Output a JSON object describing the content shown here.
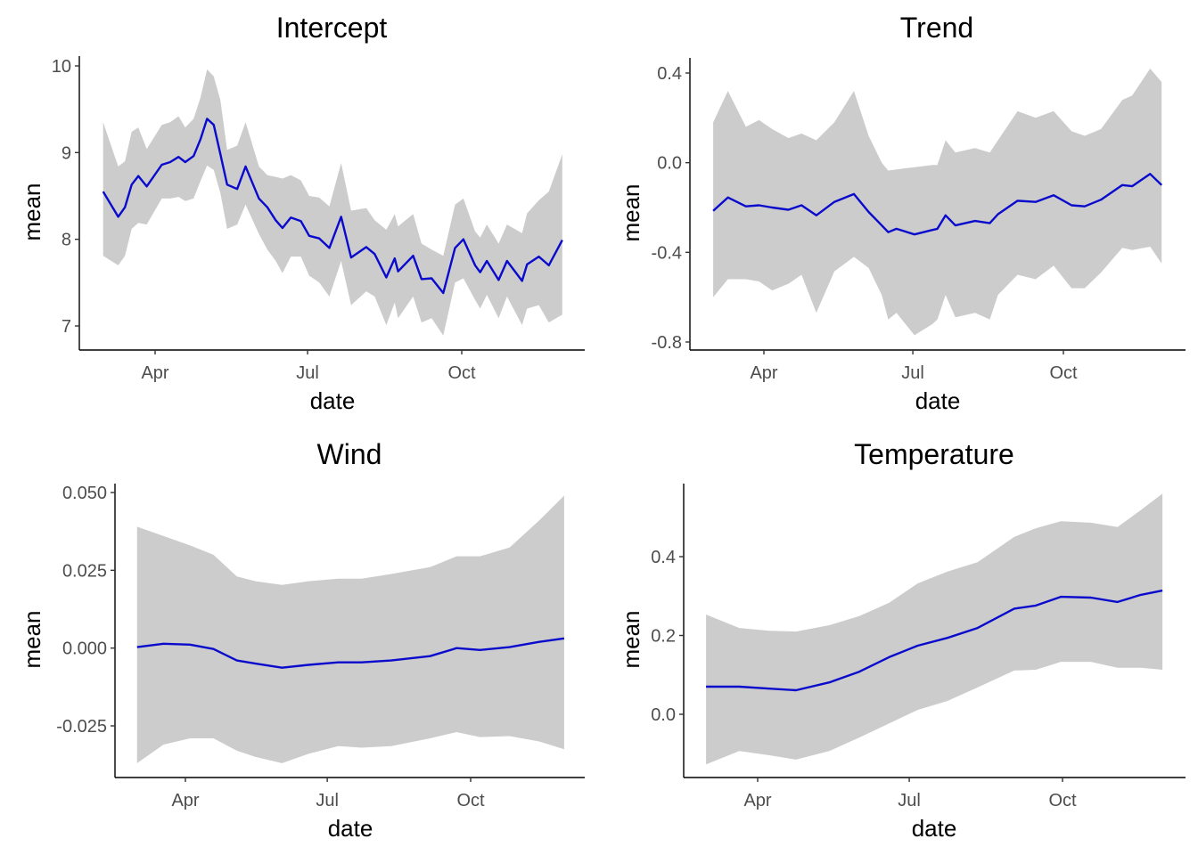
{
  "chart_data": [
    {
      "type": "line",
      "title": "Intercept",
      "xlabel": "date",
      "ylabel": "mean",
      "x_range": [
        "03-01",
        "11-30"
      ],
      "ylim": [
        6.9,
        10.1
      ],
      "grid": false,
      "colors": {
        "line": "#0a0acd",
        "ribbon": "#cccccc"
      },
      "yticks": [
        {
          "value": 7,
          "label": "7"
        },
        {
          "value": 8,
          "label": "8"
        },
        {
          "value": 9,
          "label": "9"
        },
        {
          "value": 10,
          "label": "10"
        }
      ],
      "xticks": [
        {
          "date": "04-01",
          "label": "Apr"
        },
        {
          "date": "07-01",
          "label": "Jul"
        },
        {
          "date": "10-01",
          "label": "Oct"
        }
      ],
      "series": {
        "date": [
          "03-01",
          "03-10",
          "03-14",
          "03-18",
          "03-22",
          "03-27",
          "04-05",
          "04-10",
          "04-15",
          "04-19",
          "04-24",
          "04-28",
          "05-02",
          "05-06",
          "05-10",
          "05-14",
          "05-20",
          "05-25",
          "06-02",
          "06-07",
          "06-12",
          "06-16",
          "06-21",
          "06-27",
          "07-02",
          "07-08",
          "07-14",
          "07-21",
          "07-27",
          "08-05",
          "08-10",
          "08-17",
          "08-22",
          "08-24",
          "09-02",
          "09-07",
          "09-13",
          "09-20",
          "09-27",
          "10-02",
          "10-09",
          "10-12",
          "10-16",
          "10-23",
          "10-28",
          "11-06",
          "11-09",
          "11-16",
          "11-22",
          "11-30"
        ],
        "lower": [
          7.81,
          7.7,
          7.81,
          8.12,
          8.19,
          8.17,
          8.47,
          8.47,
          8.49,
          8.44,
          8.47,
          8.67,
          8.85,
          8.8,
          8.53,
          8.12,
          8.17,
          8.4,
          8.06,
          7.88,
          7.75,
          7.61,
          7.8,
          7.8,
          7.58,
          7.5,
          7.34,
          7.75,
          7.24,
          7.4,
          7.34,
          7.01,
          7.27,
          7.09,
          7.34,
          7.04,
          7.09,
          6.89,
          7.5,
          7.55,
          7.3,
          7.2,
          7.36,
          7.09,
          7.34,
          7.01,
          7.2,
          7.24,
          7.04,
          7.13
        ],
        "mean": [
          8.55,
          8.26,
          8.37,
          8.63,
          8.73,
          8.61,
          8.86,
          8.89,
          8.95,
          8.89,
          8.96,
          9.15,
          9.39,
          9.32,
          8.98,
          8.63,
          8.58,
          8.84,
          8.47,
          8.37,
          8.22,
          8.13,
          8.25,
          8.21,
          8.04,
          8.01,
          7.9,
          8.26,
          7.79,
          7.91,
          7.83,
          7.56,
          7.78,
          7.63,
          7.81,
          7.54,
          7.55,
          7.38,
          7.9,
          8.0,
          7.7,
          7.62,
          7.75,
          7.53,
          7.75,
          7.52,
          7.71,
          7.8,
          7.7,
          7.99
        ],
        "upper": [
          9.35,
          8.84,
          8.9,
          9.24,
          9.29,
          9.04,
          9.32,
          9.35,
          9.42,
          9.29,
          9.39,
          9.63,
          9.96,
          9.88,
          9.6,
          9.03,
          9.08,
          9.35,
          8.84,
          8.74,
          8.72,
          8.7,
          8.74,
          8.68,
          8.5,
          8.48,
          8.38,
          8.88,
          8.33,
          8.36,
          8.22,
          8.11,
          8.29,
          8.15,
          8.29,
          7.95,
          7.88,
          7.81,
          8.4,
          8.47,
          8.09,
          8.02,
          8.17,
          7.95,
          8.17,
          8.07,
          8.3,
          8.45,
          8.55,
          8.98
        ]
      }
    },
    {
      "type": "line",
      "title": "Trend",
      "xlabel": "date",
      "ylabel": "mean",
      "x_range": [
        "03-01",
        "11-30"
      ],
      "ylim": [
        -0.85,
        0.45
      ],
      "grid": false,
      "colors": {
        "line": "#0a0acd",
        "ribbon": "#cccccc"
      },
      "yticks": [
        {
          "value": -0.8,
          "label": "-0.8"
        },
        {
          "value": -0.4,
          "label": "-0.4"
        },
        {
          "value": 0.0,
          "label": "0.0"
        },
        {
          "value": 0.4,
          "label": "0.4"
        }
      ],
      "xticks": [
        {
          "date": "04-01",
          "label": "Apr"
        },
        {
          "date": "07-01",
          "label": "Jul"
        },
        {
          "date": "10-01",
          "label": "Oct"
        }
      ],
      "series": {
        "date": [
          "03-01",
          "03-10",
          "03-21",
          "03-29",
          "04-06",
          "04-16",
          "04-24",
          "05-03",
          "05-14",
          "05-26",
          "06-04",
          "06-12",
          "06-16",
          "06-21",
          "07-02",
          "07-13",
          "07-16",
          "07-21",
          "07-27",
          "08-08",
          "08-17",
          "08-22",
          "09-03",
          "09-14",
          "09-25",
          "10-06",
          "10-14",
          "10-24",
          "11-06",
          "11-12",
          "11-23",
          "11-30"
        ],
        "lower": [
          -0.6,
          -0.52,
          -0.52,
          -0.53,
          -0.57,
          -0.54,
          -0.5,
          -0.67,
          -0.485,
          -0.42,
          -0.47,
          -0.59,
          -0.7,
          -0.67,
          -0.77,
          -0.72,
          -0.7,
          -0.59,
          -0.69,
          -0.67,
          -0.7,
          -0.59,
          -0.5,
          -0.52,
          -0.46,
          -0.56,
          -0.56,
          -0.49,
          -0.38,
          -0.39,
          -0.375,
          -0.45
        ],
        "mean": [
          -0.215,
          -0.155,
          -0.195,
          -0.19,
          -0.2,
          -0.21,
          -0.19,
          -0.235,
          -0.175,
          -0.14,
          -0.22,
          -0.28,
          -0.31,
          -0.295,
          -0.32,
          -0.3,
          -0.295,
          -0.235,
          -0.28,
          -0.26,
          -0.27,
          -0.23,
          -0.17,
          -0.175,
          -0.145,
          -0.19,
          -0.195,
          -0.165,
          -0.1,
          -0.105,
          -0.05,
          -0.1
        ],
        "upper": [
          0.18,
          0.32,
          0.16,
          0.19,
          0.15,
          0.11,
          0.13,
          0.1,
          0.18,
          0.32,
          0.12,
          0.0,
          -0.035,
          -0.03,
          -0.02,
          -0.01,
          -0.01,
          0.1,
          0.045,
          0.065,
          0.045,
          0.1,
          0.23,
          0.2,
          0.23,
          0.14,
          0.12,
          0.15,
          0.28,
          0.3,
          0.42,
          0.36
        ]
      }
    },
    {
      "type": "line",
      "title": "Wind",
      "xlabel": "date",
      "ylabel": "mean",
      "x_range": [
        "03-01",
        "11-30"
      ],
      "ylim": [
        -0.04,
        0.052
      ],
      "grid": false,
      "colors": {
        "line": "#0a0acd",
        "ribbon": "#cccccc"
      },
      "yticks": [
        {
          "value": -0.025,
          "label": "-0.025"
        },
        {
          "value": 0.0,
          "label": "0.000"
        },
        {
          "value": 0.025,
          "label": "0.025"
        },
        {
          "value": 0.05,
          "label": "0.050"
        }
      ],
      "xticks": [
        {
          "date": "04-01",
          "label": "Apr"
        },
        {
          "date": "07-01",
          "label": "Jul"
        },
        {
          "date": "10-01",
          "label": "Oct"
        }
      ],
      "series": {
        "date": [
          "03-01",
          "03-18",
          "04-04",
          "04-19",
          "05-04",
          "05-16",
          "06-02",
          "06-19",
          "07-08",
          "07-23",
          "08-11",
          "09-05",
          "09-22",
          "10-07",
          "10-26",
          "11-14",
          "11-30"
        ],
        "lower": [
          -0.037,
          -0.031,
          -0.029,
          -0.029,
          -0.033,
          -0.035,
          -0.037,
          -0.034,
          -0.0315,
          -0.032,
          -0.0315,
          -0.029,
          -0.027,
          -0.0286,
          -0.0283,
          -0.03,
          -0.0325
        ],
        "mean": [
          0.0003,
          0.0014,
          0.0011,
          -0.0003,
          -0.004,
          -0.005,
          -0.0063,
          -0.0054,
          -0.0046,
          -0.0046,
          -0.004,
          -0.0026,
          0.0,
          -0.0006,
          0.0003,
          0.002,
          0.0031
        ],
        "upper": [
          0.039,
          0.036,
          0.033,
          0.03,
          0.023,
          0.0215,
          0.0203,
          0.0215,
          0.0223,
          0.0223,
          0.0238,
          0.026,
          0.0295,
          0.0295,
          0.0323,
          0.041,
          0.049
        ]
      }
    },
    {
      "type": "line",
      "title": "Temperature",
      "xlabel": "date",
      "ylabel": "mean",
      "x_range": [
        "03-01",
        "11-30"
      ],
      "ylim": [
        -0.14,
        0.57
      ],
      "grid": false,
      "colors": {
        "line": "#0a0acd",
        "ribbon": "#cccccc"
      },
      "yticks": [
        {
          "value": 0.0,
          "label": "0.0"
        },
        {
          "value": 0.2,
          "label": "0.2"
        },
        {
          "value": 0.4,
          "label": "0.4"
        }
      ],
      "xticks": [
        {
          "date": "04-01",
          "label": "Apr"
        },
        {
          "date": "07-01",
          "label": "Jul"
        },
        {
          "date": "10-01",
          "label": "Oct"
        }
      ],
      "series": {
        "date": [
          "03-01",
          "03-21",
          "04-08",
          "04-24",
          "05-14",
          "06-01",
          "06-19",
          "07-06",
          "07-24",
          "08-11",
          "09-02",
          "09-15",
          "09-30",
          "10-18",
          "11-03",
          "11-17",
          "11-30"
        ],
        "lower": [
          -0.127,
          -0.093,
          -0.104,
          -0.115,
          -0.093,
          -0.059,
          -0.023,
          0.011,
          0.034,
          0.068,
          0.111,
          0.113,
          0.133,
          0.133,
          0.118,
          0.118,
          0.113
        ],
        "mean": [
          0.07,
          0.07,
          0.065,
          0.061,
          0.081,
          0.108,
          0.145,
          0.174,
          0.194,
          0.219,
          0.268,
          0.276,
          0.298,
          0.296,
          0.285,
          0.303,
          0.314
        ],
        "upper": [
          0.253,
          0.219,
          0.212,
          0.21,
          0.226,
          0.249,
          0.283,
          0.332,
          0.362,
          0.386,
          0.45,
          0.472,
          0.49,
          0.486,
          0.475,
          0.518,
          0.56
        ]
      }
    }
  ]
}
